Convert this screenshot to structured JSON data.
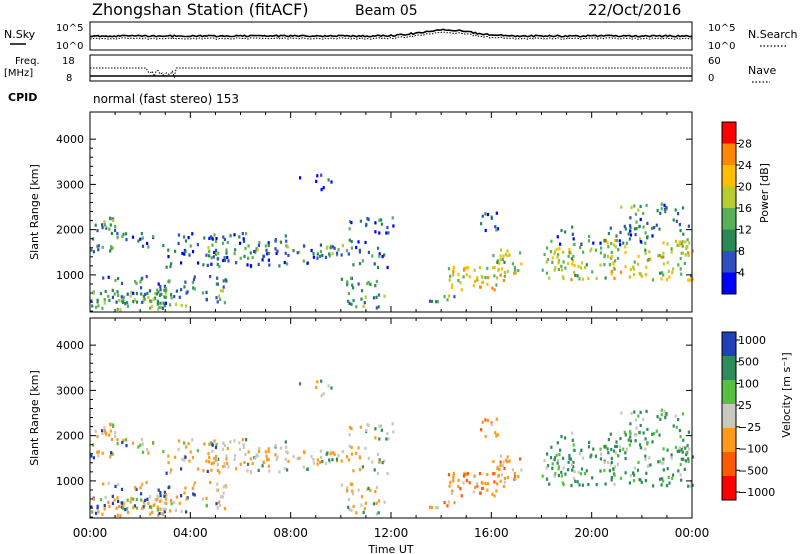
{
  "header": {
    "station": "Zhongshan Station (fitACF)",
    "beam": "Beam 05",
    "date": "22/Oct/2016"
  },
  "noise_panel": {
    "left_label": "N.Sky",
    "right_label": "N.Search",
    "left_ticks": [
      "10^5",
      "10^0"
    ],
    "right_ticks": [
      "10^5",
      "10^0"
    ]
  },
  "freq_panel": {
    "left_label_line1": "Freq.",
    "left_label_line2": "[MHz]",
    "right_label": "Nave",
    "left_ticks": [
      "18",
      "8"
    ],
    "right_ticks": [
      "60",
      "0"
    ]
  },
  "cpid": {
    "label": "CPID",
    "text": "normal (fast stereo) 153"
  },
  "time_axis": {
    "label": "Time UT",
    "ticks": [
      "00:00",
      "04:00",
      "08:00",
      "12:00",
      "16:00",
      "20:00",
      "00:00"
    ]
  },
  "colors": {
    "power": [
      "#0000ff",
      "#2f4fc0",
      "#2a8a55",
      "#58b058",
      "#b8cc30",
      "#ffbe00",
      "#ff8800",
      "#ff0000"
    ],
    "velocity": [
      "#ff0000",
      "#ff5a00",
      "#ff9a1a",
      "#c8c8be",
      "#58c040",
      "#2e8c5a",
      "#2040b8"
    ]
  },
  "chart_data": [
    {
      "type": "heatmap",
      "quantity": "Power",
      "ylabel": "Slant Range [km]",
      "xlabel": "Time UT",
      "yticks": [
        "1000",
        "2000",
        "3000",
        "4000"
      ],
      "ylim": [
        180,
        4600
      ],
      "xlim_hours": [
        0,
        24
      ],
      "colorbar_label": "Power [dB]",
      "colorbar_ticks": [
        "4",
        "8",
        "12",
        "16",
        "20",
        "24",
        "28"
      ],
      "colorbar_range": [
        0,
        32
      ]
    },
    {
      "type": "heatmap",
      "quantity": "Velocity",
      "ylabel": "Slant Range [km]",
      "xlabel": "Time UT",
      "yticks": [
        "1000",
        "2000",
        "3000",
        "4000"
      ],
      "ylim": [
        180,
        4600
      ],
      "xlim_hours": [
        0,
        24
      ],
      "colorbar_label": "Velocity [m s⁻¹]",
      "colorbar_ticks": [
        "1000",
        "500",
        "100",
        "25",
        "−25",
        "−100",
        "−500",
        "−1000"
      ]
    }
  ]
}
